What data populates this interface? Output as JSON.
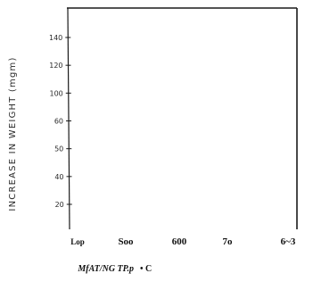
{
  "chart_data": {
    "type": "line",
    "title": "",
    "ylabel": "INCREASE IN WEIGHT (mgm)",
    "xlabel": "MfAT/NG TP.p",
    "xlabel_unit": "• C",
    "y_tick_labels": [
      "20",
      "40",
      "50",
      "60",
      "100",
      "120",
      "140"
    ],
    "x_tick_labels": [
      "Lop",
      "Soo",
      "600",
      "7o",
      "6~3"
    ],
    "series": [],
    "grid": false,
    "legend": "none"
  }
}
